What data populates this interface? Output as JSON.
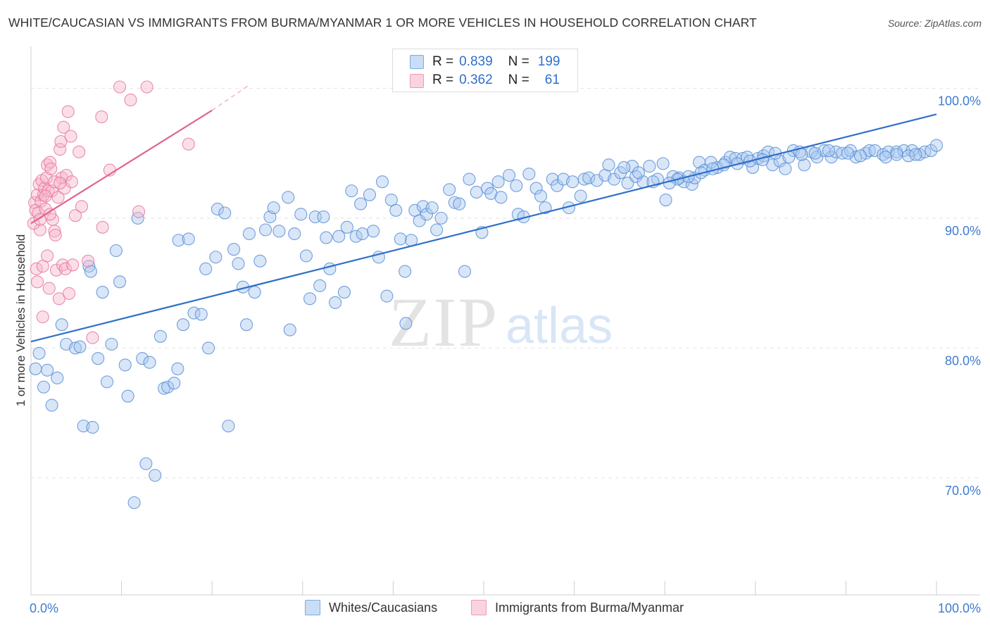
{
  "title": "WHITE/CAUCASIAN VS IMMIGRANTS FROM BURMA/MYANMAR 1 OR MORE VEHICLES IN HOUSEHOLD CORRELATION CHART",
  "source": "Source: ZipAtlas.com",
  "watermark": {
    "zip": "ZIP",
    "atlas": "atlas"
  },
  "legend": {
    "rows": [
      {
        "r_label": "R =",
        "r_value": "0.839",
        "n_label": "N =",
        "n_value": "199",
        "color": "#a8c8f0"
      },
      {
        "r_label": "R =",
        "r_value": "0.362",
        "n_label": "N =",
        "n_value": "61",
        "color": "#f7b8cc"
      }
    ]
  },
  "bottom_legend": [
    {
      "label": "Whites/Caucasians",
      "color": "#a8c8f0"
    },
    {
      "label": "Immigrants from Burma/Myanmar",
      "color": "#f7b8cc"
    }
  ],
  "chart_data": {
    "type": "scatter",
    "title": "WHITE/CAUCASIAN VS IMMIGRANTS FROM BURMA/MYANMAR 1 OR MORE VEHICLES IN HOUSEHOLD CORRELATION CHART",
    "xlabel": "",
    "ylabel": "1 or more Vehicles in Household",
    "xlim": [
      0,
      100
    ],
    "ylim": [
      61,
      103
    ],
    "x_tick_labels": [
      "0.0%",
      "100.0%"
    ],
    "y_ticks": [
      70,
      80,
      90,
      100
    ],
    "y_tick_labels": [
      "70.0%",
      "80.0%",
      "90.0%",
      "100.0%"
    ],
    "grid": true,
    "legend_position": "top-center",
    "series": [
      {
        "name": "Whites/Caucasians",
        "color": "#5b8fd6",
        "fill": "#a8c8f0",
        "trend": {
          "x": [
            0,
            100
          ],
          "y": [
            80.5,
            98.0
          ],
          "color": "#2f6fca"
        },
        "points": [
          [
            0.5,
            78.4
          ],
          [
            0.9,
            79.6
          ],
          [
            1.4,
            77
          ],
          [
            1.8,
            78.3
          ],
          [
            2.3,
            75.6
          ],
          [
            2.9,
            77.7
          ],
          [
            3.4,
            81.8
          ],
          [
            3.9,
            80.3
          ],
          [
            4.9,
            80
          ],
          [
            5.4,
            80.1
          ],
          [
            5.8,
            74
          ],
          [
            6.4,
            86.3
          ],
          [
            6.6,
            85.9
          ],
          [
            6.8,
            73.9
          ],
          [
            7.4,
            79.2
          ],
          [
            7.9,
            84.3
          ],
          [
            8.4,
            77.4
          ],
          [
            8.9,
            80.3
          ],
          [
            9.4,
            87.5
          ],
          [
            9.8,
            85.1
          ],
          [
            10.4,
            78.7
          ],
          [
            10.7,
            76.3
          ],
          [
            11.4,
            68.1
          ],
          [
            11.8,
            90
          ],
          [
            12.3,
            79.2
          ],
          [
            12.7,
            71.1
          ],
          [
            13.1,
            78.9
          ],
          [
            13.7,
            70.2
          ],
          [
            14.3,
            80.9
          ],
          [
            14.7,
            76.9
          ],
          [
            15.1,
            77
          ],
          [
            15.8,
            77.3
          ],
          [
            16.2,
            78.4
          ],
          [
            16.3,
            88.3
          ],
          [
            16.8,
            81.8
          ],
          [
            17.4,
            88.4
          ],
          [
            18,
            82.7
          ],
          [
            18.8,
            82.6
          ],
          [
            19.3,
            86.1
          ],
          [
            19.6,
            80
          ],
          [
            20.4,
            87
          ],
          [
            20.6,
            90.7
          ],
          [
            21.4,
            90.4
          ],
          [
            21.8,
            74
          ],
          [
            22.4,
            87.6
          ],
          [
            22.9,
            86.5
          ],
          [
            23.4,
            84.7
          ],
          [
            23.8,
            81.8
          ],
          [
            24.1,
            88.8
          ],
          [
            24.7,
            84.3
          ],
          [
            25.3,
            86.7
          ],
          [
            25.9,
            89.1
          ],
          [
            26.4,
            90.1
          ],
          [
            26.8,
            90.8
          ],
          [
            27.4,
            89
          ],
          [
            28.4,
            91.6
          ],
          [
            28.6,
            81.4
          ],
          [
            29.1,
            88.8
          ],
          [
            29.8,
            90.3
          ],
          [
            30.4,
            87.1
          ],
          [
            30.8,
            83.8
          ],
          [
            31.4,
            90.1
          ],
          [
            31.9,
            84.8
          ],
          [
            32.3,
            90.1
          ],
          [
            32.6,
            88.5
          ],
          [
            33,
            86.1
          ],
          [
            33.6,
            83.5
          ],
          [
            34,
            88.6
          ],
          [
            34.6,
            84.3
          ],
          [
            34.9,
            89.3
          ],
          [
            35.4,
            92.1
          ],
          [
            35.9,
            88.6
          ],
          [
            36.4,
            91.1
          ],
          [
            36.6,
            88.8
          ],
          [
            37.4,
            91.8
          ],
          [
            37.8,
            89
          ],
          [
            38.4,
            87
          ],
          [
            38.8,
            92.8
          ],
          [
            39.3,
            84
          ],
          [
            39.8,
            91.4
          ],
          [
            40.3,
            90.6
          ],
          [
            40.8,
            88.4
          ],
          [
            41.3,
            85.9
          ],
          [
            41.4,
            81.9
          ],
          [
            42,
            88.3
          ],
          [
            42.4,
            90.6
          ],
          [
            42.9,
            89.8
          ],
          [
            43.3,
            90.9
          ],
          [
            43.7,
            90.3
          ],
          [
            44.3,
            90.8
          ],
          [
            44.8,
            89.1
          ],
          [
            45.3,
            90
          ],
          [
            46.2,
            92.2
          ],
          [
            46.8,
            91.2
          ],
          [
            47.3,
            91.1
          ],
          [
            47.9,
            85.9
          ],
          [
            48.4,
            93
          ],
          [
            49.2,
            92
          ],
          [
            49.8,
            88.9
          ],
          [
            50.4,
            92.3
          ],
          [
            50.8,
            91.9
          ],
          [
            51.6,
            92.8
          ],
          [
            51.9,
            91.6
          ],
          [
            52.8,
            93.3
          ],
          [
            53.6,
            92.5
          ],
          [
            53.8,
            90.3
          ],
          [
            54.4,
            90.1
          ],
          [
            55,
            93.4
          ],
          [
            55.8,
            92.3
          ],
          [
            56.3,
            91.7
          ],
          [
            56.8,
            90.8
          ],
          [
            57.6,
            93
          ],
          [
            58.1,
            92.5
          ],
          [
            58.8,
            93
          ],
          [
            59.4,
            90.8
          ],
          [
            59.8,
            92.8
          ],
          [
            60.7,
            91.7
          ],
          [
            61.1,
            93
          ],
          [
            61.6,
            93.1
          ],
          [
            62.5,
            92.9
          ],
          [
            63.4,
            93.3
          ],
          [
            63.8,
            94.1
          ],
          [
            64.4,
            93
          ],
          [
            65.1,
            93.5
          ],
          [
            65.9,
            92.7
          ],
          [
            66.4,
            94
          ],
          [
            66.8,
            93.2
          ],
          [
            67.6,
            92.8
          ],
          [
            68.3,
            94
          ],
          [
            69.2,
            93
          ],
          [
            69.8,
            94.2
          ],
          [
            70.1,
            91.4
          ],
          [
            70.9,
            93.2
          ],
          [
            71.6,
            93.1
          ],
          [
            72.1,
            92.8
          ],
          [
            73,
            92.6
          ],
          [
            73.3,
            93.1
          ],
          [
            73.8,
            94.3
          ],
          [
            74.4,
            93.7
          ],
          [
            75.1,
            94.3
          ],
          [
            75.8,
            93.9
          ],
          [
            76.7,
            94.3
          ],
          [
            77.2,
            94.7
          ],
          [
            77.8,
            94.6
          ],
          [
            78.6,
            94.6
          ],
          [
            79.1,
            94.7
          ],
          [
            79.7,
            93.9
          ],
          [
            80.3,
            94.6
          ],
          [
            80.9,
            94.8
          ],
          [
            81.4,
            95.1
          ],
          [
            81.9,
            94.1
          ],
          [
            82.7,
            94.4
          ],
          [
            83.3,
            93.8
          ],
          [
            84.2,
            95.2
          ],
          [
            84.9,
            95.1
          ],
          [
            85.4,
            94.1
          ],
          [
            86.2,
            95.1
          ],
          [
            86.8,
            94.7
          ],
          [
            87.6,
            95.2
          ],
          [
            88.4,
            94.7
          ],
          [
            88.9,
            95.1
          ],
          [
            89.6,
            95
          ],
          [
            90.5,
            95.2
          ],
          [
            91.1,
            94.7
          ],
          [
            92.2,
            95
          ],
          [
            92.6,
            95.2
          ],
          [
            93.2,
            95.2
          ],
          [
            94.1,
            94.9
          ],
          [
            94.7,
            95.1
          ],
          [
            95.6,
            95.1
          ],
          [
            96.4,
            95.2
          ],
          [
            97.3,
            95.2
          ],
          [
            98.1,
            94.9
          ],
          [
            98.7,
            95.1
          ],
          [
            99.4,
            95.2
          ],
          [
            100,
            95.6
          ],
          [
            94.4,
            94.7
          ],
          [
            95.6,
            94.9
          ],
          [
            96.9,
            94.8
          ],
          [
            97.7,
            94.9
          ],
          [
            91.6,
            94.8
          ],
          [
            90.2,
            95
          ],
          [
            88.1,
            95.2
          ],
          [
            86.6,
            95
          ],
          [
            85.1,
            94.9
          ],
          [
            83.7,
            94.7
          ],
          [
            82.2,
            95
          ],
          [
            80.8,
            94.5
          ],
          [
            79.4,
            94.4
          ],
          [
            78,
            94.2
          ],
          [
            76.5,
            94.1
          ],
          [
            75.3,
            93.8
          ],
          [
            74,
            93.5
          ],
          [
            72.6,
            93.2
          ],
          [
            71.4,
            93
          ],
          [
            70.5,
            92.7
          ],
          [
            68.7,
            92.8
          ],
          [
            67.1,
            93.5
          ],
          [
            65.5,
            93.9
          ]
        ]
      },
      {
        "name": "Immigrants from Burma/Myanmar",
        "color": "#e67a9e",
        "fill": "#f7b8cc",
        "trend": {
          "x": [
            0,
            20
          ],
          "y": [
            89.6,
            98.3
          ],
          "color": "#e0658e",
          "dashed_extension_to": [
            24,
            100.2
          ]
        },
        "points": [
          [
            0.4,
            91.2
          ],
          [
            0.5,
            90.6
          ],
          [
            0.6,
            86.1
          ],
          [
            0.7,
            91.8
          ],
          [
            0.7,
            85.1
          ],
          [
            0.8,
            90.4
          ],
          [
            0.9,
            92.6
          ],
          [
            1,
            89.1
          ],
          [
            1.1,
            91.3
          ],
          [
            1.2,
            92.9
          ],
          [
            1.3,
            86.3
          ],
          [
            1.3,
            82.4
          ],
          [
            1.4,
            91.8
          ],
          [
            1.5,
            92.3
          ],
          [
            1.6,
            90.7
          ],
          [
            1.7,
            93.1
          ],
          [
            1.8,
            94.1
          ],
          [
            1.8,
            87.1
          ],
          [
            1.9,
            92.1
          ],
          [
            2,
            84.6
          ],
          [
            2.1,
            94.3
          ],
          [
            2.2,
            93.8
          ],
          [
            2.3,
            92.1
          ],
          [
            2.4,
            89.9
          ],
          [
            2.6,
            89
          ],
          [
            2.7,
            88.7
          ],
          [
            2.8,
            86
          ],
          [
            3,
            91.6
          ],
          [
            3.1,
            83.8
          ],
          [
            3.2,
            95.3
          ],
          [
            3.3,
            95.9
          ],
          [
            3.4,
            93.1
          ],
          [
            3.5,
            86.4
          ],
          [
            3.6,
            97
          ],
          [
            3.7,
            92.3
          ],
          [
            3.8,
            86.1
          ],
          [
            3.9,
            93.3
          ],
          [
            4.2,
            84.2
          ],
          [
            4.4,
            96.3
          ],
          [
            4.5,
            92.8
          ],
          [
            4.6,
            86.4
          ],
          [
            4.9,
            90.2
          ],
          [
            5.3,
            95.1
          ],
          [
            5.6,
            90.9
          ],
          [
            6.3,
            86.7
          ],
          [
            6.8,
            80.8
          ],
          [
            7.8,
            97.8
          ],
          [
            7.9,
            89.3
          ],
          [
            8.7,
            93.7
          ],
          [
            9.8,
            100.1
          ],
          [
            11,
            99.1
          ],
          [
            11.9,
            90.5
          ],
          [
            12.8,
            100.1
          ],
          [
            17.4,
            95.7
          ],
          [
            1.6,
            91.7
          ],
          [
            2.6,
            92.8
          ],
          [
            0.3,
            89.6
          ],
          [
            3.2,
            92.7
          ],
          [
            2.1,
            90.3
          ],
          [
            1,
            89.9
          ],
          [
            4.1,
            98.2
          ]
        ]
      }
    ]
  }
}
